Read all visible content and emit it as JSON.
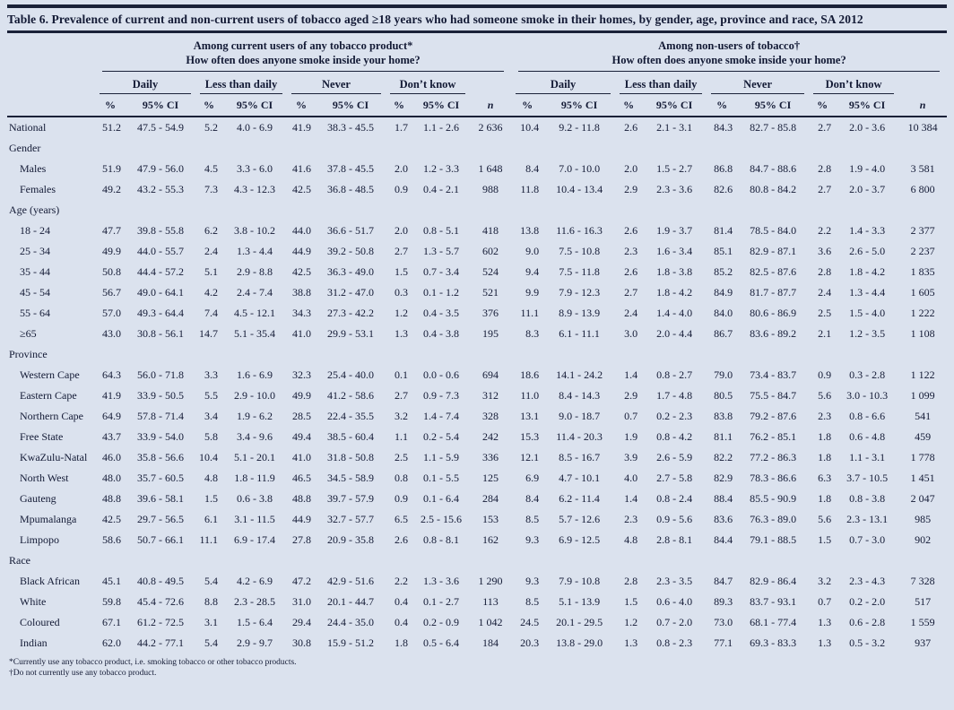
{
  "title": "Table 6. Prevalence of current and non-current users of tobacco aged ≥18 years who had someone smoke in their homes, by gender, age, province and race, SA 2012",
  "colors": {
    "background": "#dbe2ee",
    "text": "#131a35",
    "rule": "#1a2138"
  },
  "sections": [
    {
      "label": "Among current users of any tobacco product*",
      "question": "How often does anyone smoke inside your home?"
    },
    {
      "label": "Among non-users of tobacco†",
      "question": "How often does anyone smoke inside your home?"
    }
  ],
  "groups": [
    "Daily",
    "Less than daily",
    "Never",
    "Don’t know"
  ],
  "col_headers": {
    "pct": "%",
    "ci": "95% CI",
    "n": "n"
  },
  "rows": [
    {
      "type": "data",
      "label": "National",
      "indent": false,
      "current": [
        "51.2",
        "47.5 - 54.9",
        "5.2",
        "4.0 - 6.9",
        "41.9",
        "38.3 - 45.5",
        "1.7",
        "1.1 - 2.6",
        "2 636"
      ],
      "nonusers": [
        "10.4",
        "9.2 - 11.8",
        "2.6",
        "2.1 - 3.1",
        "84.3",
        "82.7 - 85.8",
        "2.7",
        "2.0 - 3.6",
        "10 384"
      ]
    },
    {
      "type": "section",
      "label": "Gender"
    },
    {
      "type": "data",
      "label": "Males",
      "indent": true,
      "current": [
        "51.9",
        "47.9 - 56.0",
        "4.5",
        "3.3 - 6.0",
        "41.6",
        "37.8 - 45.5",
        "2.0",
        "1.2 - 3.3",
        "1 648"
      ],
      "nonusers": [
        "8.4",
        "7.0 - 10.0",
        "2.0",
        "1.5 - 2.7",
        "86.8",
        "84.7 - 88.6",
        "2.8",
        "1.9 - 4.0",
        "3 581"
      ]
    },
    {
      "type": "data",
      "label": "Females",
      "indent": true,
      "current": [
        "49.2",
        "43.2 - 55.3",
        "7.3",
        "4.3 - 12.3",
        "42.5",
        "36.8 - 48.5",
        "0.9",
        "0.4 - 2.1",
        "988"
      ],
      "nonusers": [
        "11.8",
        "10.4 - 13.4",
        "2.9",
        "2.3 - 3.6",
        "82.6",
        "80.8 - 84.2",
        "2.7",
        "2.0 - 3.7",
        "6 800"
      ]
    },
    {
      "type": "section",
      "label": "Age (years)"
    },
    {
      "type": "data",
      "label": "18 - 24",
      "indent": true,
      "current": [
        "47.7",
        "39.8 - 55.8",
        "6.2",
        "3.8 - 10.2",
        "44.0",
        "36.6 - 51.7",
        "2.0",
        "0.8 - 5.1",
        "418"
      ],
      "nonusers": [
        "13.8",
        "11.6 - 16.3",
        "2.6",
        "1.9 - 3.7",
        "81.4",
        "78.5 - 84.0",
        "2.2",
        "1.4 - 3.3",
        "2 377"
      ]
    },
    {
      "type": "data",
      "label": "25 - 34",
      "indent": true,
      "current": [
        "49.9",
        "44.0 - 55.7",
        "2.4",
        "1.3 - 4.4",
        "44.9",
        "39.2 - 50.8",
        "2.7",
        "1.3 - 5.7",
        "602"
      ],
      "nonusers": [
        "9.0",
        "7.5 - 10.8",
        "2.3",
        "1.6 - 3.4",
        "85.1",
        "82.9 - 87.1",
        "3.6",
        "2.6 - 5.0",
        "2 237"
      ]
    },
    {
      "type": "data",
      "label": "35 - 44",
      "indent": true,
      "current": [
        "50.8",
        "44.4 - 57.2",
        "5.1",
        "2.9 - 8.8",
        "42.5",
        "36.3 - 49.0",
        "1.5",
        "0.7 - 3.4",
        "524"
      ],
      "nonusers": [
        "9.4",
        "7.5 - 11.8",
        "2.6",
        "1.8 - 3.8",
        "85.2",
        "82.5 - 87.6",
        "2.8",
        "1.8 - 4.2",
        "1 835"
      ]
    },
    {
      "type": "data",
      "label": "45 - 54",
      "indent": true,
      "current": [
        "56.7",
        "49.0 - 64.1",
        "4.2",
        "2.4 - 7.4",
        "38.8",
        "31.2 - 47.0",
        "0.3",
        "0.1 - 1.2",
        "521"
      ],
      "nonusers": [
        "9.9",
        "7.9 - 12.3",
        "2.7",
        "1.8 - 4.2",
        "84.9",
        "81.7 - 87.7",
        "2.4",
        "1.3 - 4.4",
        "1 605"
      ]
    },
    {
      "type": "data",
      "label": "55 - 64",
      "indent": true,
      "current": [
        "57.0",
        "49.3 - 64.4",
        "7.4",
        "4.5 - 12.1",
        "34.3",
        "27.3 - 42.2",
        "1.2",
        "0.4 - 3.5",
        "376"
      ],
      "nonusers": [
        "11.1",
        "8.9 - 13.9",
        "2.4",
        "1.4 - 4.0",
        "84.0",
        "80.6 - 86.9",
        "2.5",
        "1.5 - 4.0",
        "1 222"
      ]
    },
    {
      "type": "data",
      "label": "≥65",
      "indent": true,
      "current": [
        "43.0",
        "30.8 - 56.1",
        "14.7",
        "5.1 - 35.4",
        "41.0",
        "29.9 - 53.1",
        "1.3",
        "0.4 - 3.8",
        "195"
      ],
      "nonusers": [
        "8.3",
        "6.1 - 11.1",
        "3.0",
        "2.0 - 4.4",
        "86.7",
        "83.6 - 89.2",
        "2.1",
        "1.2 - 3.5",
        "1 108"
      ]
    },
    {
      "type": "section",
      "label": "Province"
    },
    {
      "type": "data",
      "label": "Western Cape",
      "indent": true,
      "current": [
        "64.3",
        "56.0 - 71.8",
        "3.3",
        "1.6 - 6.9",
        "32.3",
        "25.4 - 40.0",
        "0.1",
        "0.0 - 0.6",
        "694"
      ],
      "nonusers": [
        "18.6",
        "14.1 - 24.2",
        "1.4",
        "0.8 - 2.7",
        "79.0",
        "73.4 - 83.7",
        "0.9",
        "0.3 - 2.8",
        "1 122"
      ]
    },
    {
      "type": "data",
      "label": "Eastern Cape",
      "indent": true,
      "current": [
        "41.9",
        "33.9 - 50.5",
        "5.5",
        "2.9 - 10.0",
        "49.9",
        "41.2 - 58.6",
        "2.7",
        "0.9 - 7.3",
        "312"
      ],
      "nonusers": [
        "11.0",
        "8.4 - 14.3",
        "2.9",
        "1.7 - 4.8",
        "80.5",
        "75.5 - 84.7",
        "5.6",
        "3.0 - 10.3",
        "1 099"
      ]
    },
    {
      "type": "data",
      "label": "Northern Cape",
      "indent": true,
      "current": [
        "64.9",
        "57.8 - 71.4",
        "3.4",
        "1.9 - 6.2",
        "28.5",
        "22.4 - 35.5",
        "3.2",
        "1.4 - 7.4",
        "328"
      ],
      "nonusers": [
        "13.1",
        "9.0 - 18.7",
        "0.7",
        "0.2 - 2.3",
        "83.8",
        "79.2 - 87.6",
        "2.3",
        "0.8 - 6.6",
        "541"
      ]
    },
    {
      "type": "data",
      "label": "Free State",
      "indent": true,
      "current": [
        "43.7",
        "33.9 - 54.0",
        "5.8",
        "3.4 - 9.6",
        "49.4",
        "38.5 - 60.4",
        "1.1",
        "0.2 - 5.4",
        "242"
      ],
      "nonusers": [
        "15.3",
        "11.4 - 20.3",
        "1.9",
        "0.8 - 4.2",
        "81.1",
        "76.2 - 85.1",
        "1.8",
        "0.6 - 4.8",
        "459"
      ]
    },
    {
      "type": "data",
      "label": "KwaZulu-Natal",
      "indent": true,
      "current": [
        "46.0",
        "35.8 - 56.6",
        "10.4",
        "5.1 - 20.1",
        "41.0",
        "31.8 - 50.8",
        "2.5",
        "1.1 - 5.9",
        "336"
      ],
      "nonusers": [
        "12.1",
        "8.5 - 16.7",
        "3.9",
        "2.6 - 5.9",
        "82.2",
        "77.2 - 86.3",
        "1.8",
        "1.1 - 3.1",
        "1 778"
      ]
    },
    {
      "type": "data",
      "label": "North West",
      "indent": true,
      "current": [
        "48.0",
        "35.7 - 60.5",
        "4.8",
        "1.8 - 11.9",
        "46.5",
        "34.5 - 58.9",
        "0.8",
        "0.1 - 5.5",
        "125"
      ],
      "nonusers": [
        "6.9",
        "4.7 - 10.1",
        "4.0",
        "2.7 - 5.8",
        "82.9",
        "78.3 - 86.6",
        "6.3",
        "3.7 - 10.5",
        "1 451"
      ]
    },
    {
      "type": "data",
      "label": "Gauteng",
      "indent": true,
      "current": [
        "48.8",
        "39.6 - 58.1",
        "1.5",
        "0.6 - 3.8",
        "48.8",
        "39.7 - 57.9",
        "0.9",
        "0.1 - 6.4",
        "284"
      ],
      "nonusers": [
        "8.4",
        "6.2 - 11.4",
        "1.4",
        "0.8 - 2.4",
        "88.4",
        "85.5 - 90.9",
        "1.8",
        "0.8 - 3.8",
        "2 047"
      ]
    },
    {
      "type": "data",
      "label": "Mpumalanga",
      "indent": true,
      "current": [
        "42.5",
        "29.7 - 56.5",
        "6.1",
        "3.1 - 11.5",
        "44.9",
        "32.7 - 57.7",
        "6.5",
        "2.5 - 15.6",
        "153"
      ],
      "nonusers": [
        "8.5",
        "5.7 - 12.6",
        "2.3",
        "0.9 - 5.6",
        "83.6",
        "76.3 - 89.0",
        "5.6",
        "2.3 - 13.1",
        "985"
      ]
    },
    {
      "type": "data",
      "label": "Limpopo",
      "indent": true,
      "current": [
        "58.6",
        "50.7 - 66.1",
        "11.1",
        "6.9 - 17.4",
        "27.8",
        "20.9 - 35.8",
        "2.6",
        "0.8 - 8.1",
        "162"
      ],
      "nonusers": [
        "9.3",
        "6.9 - 12.5",
        "4.8",
        "2.8 - 8.1",
        "84.4",
        "79.1 - 88.5",
        "1.5",
        "0.7 - 3.0",
        "902"
      ]
    },
    {
      "type": "section",
      "label": "Race"
    },
    {
      "type": "data",
      "label": "Black African",
      "indent": true,
      "current": [
        "45.1",
        "40.8 - 49.5",
        "5.4",
        "4.2 - 6.9",
        "47.2",
        "42.9 - 51.6",
        "2.2",
        "1.3 - 3.6",
        "1 290"
      ],
      "nonusers": [
        "9.3",
        "7.9 - 10.8",
        "2.8",
        "2.3 - 3.5",
        "84.7",
        "82.9 - 86.4",
        "3.2",
        "2.3 - 4.3",
        "7 328"
      ]
    },
    {
      "type": "data",
      "label": "White",
      "indent": true,
      "current": [
        "59.8",
        "45.4 - 72.6",
        "8.8",
        "2.3 - 28.5",
        "31.0",
        "20.1 - 44.7",
        "0.4",
        "0.1 - 2.7",
        "113"
      ],
      "nonusers": [
        "8.5",
        "5.1 - 13.9",
        "1.5",
        "0.6 - 4.0",
        "89.3",
        "83.7 - 93.1",
        "0.7",
        "0.2 - 2.0",
        "517"
      ]
    },
    {
      "type": "data",
      "label": "Coloured",
      "indent": true,
      "current": [
        "67.1",
        "61.2 - 72.5",
        "3.1",
        "1.5 - 6.4",
        "29.4",
        "24.4 - 35.0",
        "0.4",
        "0.2 - 0.9",
        "1 042"
      ],
      "nonusers": [
        "24.5",
        "20.1 - 29.5",
        "1.2",
        "0.7 - 2.0",
        "73.0",
        "68.1 - 77.4",
        "1.3",
        "0.6 - 2.8",
        "1 559"
      ]
    },
    {
      "type": "data",
      "label": "Indian",
      "indent": true,
      "current": [
        "62.0",
        "44.2 - 77.1",
        "5.4",
        "2.9 - 9.7",
        "30.8",
        "15.9 - 51.2",
        "1.8",
        "0.5 - 6.4",
        "184"
      ],
      "nonusers": [
        "20.3",
        "13.8 - 29.0",
        "1.3",
        "0.8 - 2.3",
        "77.1",
        "69.3 - 83.3",
        "1.3",
        "0.5 - 3.2",
        "937"
      ]
    }
  ],
  "footnotes": [
    "*Currently use any tobacco product, i.e. smoking tobacco or other tobacco products.",
    "†Do not currently use any tobacco product."
  ]
}
